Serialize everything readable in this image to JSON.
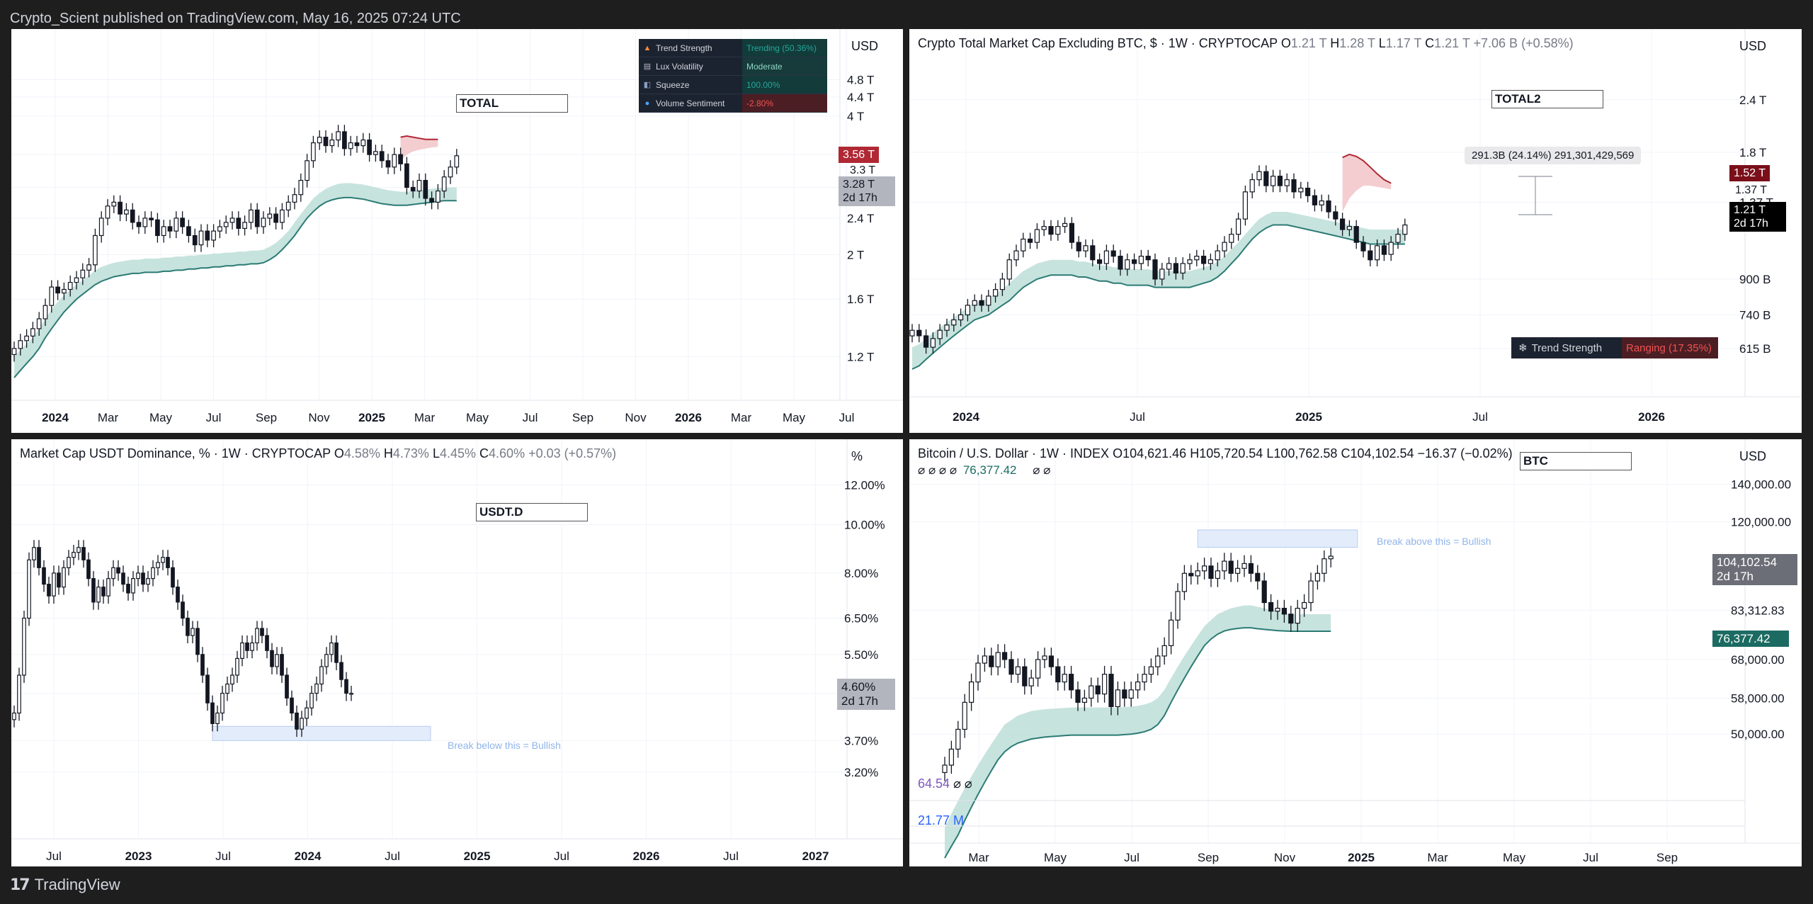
{
  "header": {
    "published": "Crypto_Scient published on TradingView.com, May 16, 2025 07:24 UTC"
  },
  "footer": {
    "brand": "TradingView",
    "logo": "tradingview-logo"
  },
  "colors": {
    "bull_fill": "#ffffff",
    "bear_fill": "#131722",
    "band": "#b9dcd6",
    "band_line": "#2b7a74",
    "red_cloud": "#f2c4c8",
    "red_line": "#b02834",
    "zone": "#e3ecfb"
  },
  "panels": {
    "p1": {
      "label": "TOTAL",
      "currency": "USD",
      "table": [
        {
          "icon": "fire-icon",
          "key": "Trend Strength",
          "value": "Trending (50.36%)"
        },
        {
          "icon": "chart-icon",
          "key": "Lux Volatility",
          "value": "Moderate"
        },
        {
          "icon": "compress-icon",
          "key": "Squeeze",
          "value": "100.00%"
        },
        {
          "icon": "drop-icon",
          "key": "Volume Sentiment",
          "value": "-2.80%"
        }
      ],
      "tags": {
        "red": "3.56 T",
        "plain": "3.3 T",
        "price": "3.28 T",
        "countdown": "2d 17h"
      }
    },
    "p2": {
      "title_main": "Crypto Total Market Cap Excluding BTC, $ · 1W · CRYPTOCAP",
      "o_label": "O",
      "o": "1.21 T",
      "h_label": "H",
      "h": "1.28 T",
      "l_label": "L",
      "l": "1.17 T",
      "c_label": "C",
      "c": "1.21 T",
      "chg": "+7.06 B (+0.58%)",
      "label": "TOTAL2",
      "currency": "USD",
      "measure": "291.3B (24.14%) 291,301,429,569",
      "tags": {
        "red": "1.52 T",
        "plain": "1.37 T",
        "price": "1.21 T",
        "countdown": "2d 17h"
      },
      "trend_key": "Trend Strength",
      "trend_val": "Ranging (17.35%)"
    },
    "p3": {
      "title_main": "Market Cap USDT Dominance, % · 1W · CRYPTOCAP",
      "o_label": "O",
      "o": "4.58%",
      "h_label": "H",
      "h": "4.73%",
      "l_label": "L",
      "l": "4.45%",
      "c_label": "C",
      "c": "4.60%",
      "chg": "+0.03 (+0.57%)",
      "label": "USDT.D",
      "currency": "%",
      "zone_text": "Break below this = Bullish",
      "tags": {
        "price": "4.60%",
        "countdown": "2d 17h"
      }
    },
    "p4": {
      "title_main": "Bitcoin / U.S. Dollar · 1W · INDEX",
      "o_label": "O",
      "o": "104,621.46",
      "h_label": "H",
      "h": "105,720.54",
      "l_label": "L",
      "l": "100,762.58",
      "c_label": "C",
      "c": "104,102.54",
      "chg": "−16.37 (−0.02%)",
      "sub_symbols": "⌀ ⌀ ⌀ ⌀",
      "sub_value": "76,377.42",
      "sub_symbols2": "⌀ ⌀",
      "label": "BTC",
      "currency": "USD",
      "zone_text": "Break above this = Bullish",
      "tags": {
        "price": "104,102.54",
        "countdown": "2d 17h",
        "band": "76,377.42"
      },
      "ind1": "64.54",
      "ind1_sym": "⌀ ⌀",
      "ind2": "21.77 M"
    }
  },
  "chart_data": [
    {
      "type": "candlestick",
      "name": "TOTAL",
      "y_axis": [
        "4.8 T",
        "4.4 T",
        "4 T",
        "3.3 T",
        "2.8 T",
        "2.4 T",
        "2 T",
        "1.6 T",
        "1.2 T"
      ],
      "y_scale": "log",
      "x_axis": [
        "2024",
        "Mar",
        "May",
        "Jul",
        "Sep",
        "Nov",
        "2025",
        "Mar",
        "May",
        "Jul",
        "Sep",
        "Nov",
        "2026",
        "Mar",
        "May",
        "Jul"
      ],
      "closes": [
        1.25,
        1.3,
        1.33,
        1.38,
        1.45,
        1.55,
        1.7,
        1.65,
        1.68,
        1.74,
        1.78,
        1.85,
        1.9,
        2.2,
        2.4,
        2.55,
        2.6,
        2.45,
        2.5,
        2.35,
        2.3,
        2.4,
        2.38,
        2.2,
        2.3,
        2.25,
        2.4,
        2.3,
        2.2,
        2.1,
        2.25,
        2.15,
        2.25,
        2.3,
        2.35,
        2.4,
        2.28,
        2.35,
        2.5,
        2.3,
        2.4,
        2.45,
        2.35,
        2.5,
        2.6,
        2.7,
        2.9,
        3.2,
        3.5,
        3.6,
        3.45,
        3.55,
        3.7,
        3.4,
        3.5,
        3.45,
        3.55,
        3.3,
        3.35,
        3.2,
        3.1,
        3.3,
        3.15,
        2.8,
        2.75,
        2.9,
        2.65,
        2.6,
        2.75,
        2.95,
        3.1,
        3.28
      ],
      "band_upper": [
        1.2,
        1.24,
        1.28,
        1.32,
        1.38,
        1.45,
        1.52,
        1.58,
        1.63,
        1.68,
        1.72,
        1.76,
        1.8,
        1.85,
        1.88,
        1.9,
        1.92,
        1.93,
        1.94,
        1.95,
        1.95,
        1.96,
        1.96,
        1.96,
        1.97,
        1.97,
        1.98,
        1.98,
        1.99,
        1.99,
        2.0,
        2.0,
        2.01,
        2.01,
        2.02,
        2.02,
        2.03,
        2.03,
        2.04,
        2.04,
        2.05,
        2.08,
        2.12,
        2.18,
        2.25,
        2.35,
        2.45,
        2.55,
        2.65,
        2.72,
        2.78,
        2.82,
        2.85,
        2.86,
        2.86,
        2.85,
        2.84,
        2.82,
        2.8,
        2.78,
        2.76,
        2.75,
        2.74,
        2.74,
        2.75,
        2.76,
        2.77,
        2.78,
        2.79,
        2.8,
        2.8,
        2.8
      ],
      "band_lower": [
        1.08,
        1.12,
        1.16,
        1.2,
        1.25,
        1.32,
        1.38,
        1.44,
        1.5,
        1.55,
        1.6,
        1.64,
        1.68,
        1.72,
        1.75,
        1.77,
        1.79,
        1.8,
        1.81,
        1.82,
        1.82,
        1.83,
        1.83,
        1.83,
        1.84,
        1.84,
        1.85,
        1.85,
        1.86,
        1.86,
        1.87,
        1.87,
        1.88,
        1.88,
        1.89,
        1.89,
        1.9,
        1.9,
        1.91,
        1.91,
        1.92,
        1.95,
        1.99,
        2.05,
        2.12,
        2.2,
        2.3,
        2.4,
        2.48,
        2.55,
        2.6,
        2.63,
        2.65,
        2.66,
        2.66,
        2.65,
        2.64,
        2.62,
        2.6,
        2.58,
        2.57,
        2.56,
        2.56,
        2.56,
        2.57,
        2.58,
        2.59,
        2.6,
        2.61,
        2.62,
        2.62,
        2.62
      ],
      "red_cloud": {
        "start_index": 62,
        "upper": [
          3.6,
          3.62,
          3.6,
          3.58,
          3.56,
          3.56,
          3.56
        ],
        "lower": [
          3.2,
          3.3,
          3.35,
          3.38,
          3.4,
          3.42,
          3.43
        ]
      }
    },
    {
      "type": "candlestick",
      "name": "TOTAL2",
      "y_axis": [
        "2.4 T",
        "1.8 T",
        "1.37 T",
        "900 B",
        "740 B",
        "615 B"
      ],
      "y_scale": "log",
      "x_axis": [
        "2024",
        "Jul",
        "2025",
        "Jul",
        "2026"
      ],
      "closes": [
        0.68,
        0.66,
        0.62,
        0.65,
        0.68,
        0.7,
        0.72,
        0.74,
        0.78,
        0.8,
        0.78,
        0.82,
        0.85,
        0.9,
        1.0,
        1.05,
        1.12,
        1.1,
        1.18,
        1.2,
        1.15,
        1.2,
        1.22,
        1.1,
        1.05,
        1.08,
        1.0,
        0.98,
        1.05,
        1.02,
        0.95,
        1.0,
        0.98,
        1.02,
        1.0,
        0.9,
        0.95,
        0.98,
        0.93,
        0.98,
        1.0,
        1.02,
        0.98,
        1.0,
        1.05,
        1.1,
        1.15,
        1.25,
        1.45,
        1.55,
        1.62,
        1.5,
        1.58,
        1.5,
        1.55,
        1.45,
        1.48,
        1.42,
        1.35,
        1.38,
        1.3,
        1.25,
        1.18,
        1.2,
        1.1,
        1.05,
        1.0,
        1.08,
        1.03,
        1.1,
        1.15,
        1.21
      ],
      "band_upper": [
        0.62,
        0.63,
        0.65,
        0.67,
        0.69,
        0.71,
        0.73,
        0.75,
        0.77,
        0.79,
        0.8,
        0.81,
        0.83,
        0.85,
        0.88,
        0.91,
        0.94,
        0.96,
        0.98,
        0.99,
        1.0,
        1.0,
        1.0,
        1.0,
        0.99,
        0.99,
        0.98,
        0.97,
        0.97,
        0.96,
        0.96,
        0.95,
        0.95,
        0.95,
        0.95,
        0.94,
        0.94,
        0.94,
        0.94,
        0.94,
        0.94,
        0.95,
        0.96,
        0.97,
        0.99,
        1.02,
        1.06,
        1.1,
        1.15,
        1.2,
        1.25,
        1.28,
        1.3,
        1.3,
        1.3,
        1.29,
        1.28,
        1.27,
        1.26,
        1.25,
        1.24,
        1.23,
        1.22,
        1.21,
        1.2,
        1.19,
        1.18,
        1.18,
        1.18,
        1.18,
        1.18,
        1.18
      ],
      "band_lower": [
        0.55,
        0.56,
        0.58,
        0.6,
        0.62,
        0.64,
        0.66,
        0.68,
        0.7,
        0.72,
        0.73,
        0.74,
        0.76,
        0.78,
        0.8,
        0.83,
        0.86,
        0.88,
        0.9,
        0.91,
        0.92,
        0.92,
        0.92,
        0.92,
        0.91,
        0.91,
        0.9,
        0.89,
        0.89,
        0.88,
        0.88,
        0.87,
        0.87,
        0.87,
        0.87,
        0.86,
        0.86,
        0.86,
        0.86,
        0.86,
        0.86,
        0.87,
        0.88,
        0.89,
        0.91,
        0.94,
        0.98,
        1.02,
        1.07,
        1.12,
        1.16,
        1.19,
        1.21,
        1.21,
        1.21,
        1.2,
        1.19,
        1.18,
        1.17,
        1.16,
        1.15,
        1.14,
        1.13,
        1.12,
        1.11,
        1.1,
        1.09,
        1.09,
        1.09,
        1.09,
        1.09,
        1.09
      ],
      "red_cloud": {
        "start_index": 62,
        "upper": [
          1.75,
          1.78,
          1.76,
          1.72,
          1.66,
          1.6,
          1.55,
          1.52
        ],
        "lower": [
          1.3,
          1.4,
          1.46,
          1.5,
          1.5,
          1.49,
          1.48,
          1.47
        ]
      }
    },
    {
      "type": "candlestick",
      "name": "USDT.D",
      "y_axis": [
        "12.00%",
        "10.00%",
        "8.00%",
        "6.50%",
        "5.50%",
        "4.60%",
        "3.70%",
        "3.20%"
      ],
      "y_scale": "log",
      "x_axis": [
        "Jul",
        "2023",
        "Jul",
        "2024",
        "Jul",
        "2025",
        "Jul",
        "2026",
        "Jul",
        "2027"
      ],
      "closes": [
        4.2,
        5.0,
        6.5,
        8.5,
        9.0,
        8.2,
        7.6,
        7.2,
        8.0,
        7.5,
        8.2,
        8.6,
        8.8,
        9.0,
        8.5,
        7.8,
        7.0,
        7.5,
        7.2,
        7.8,
        8.2,
        8.0,
        7.6,
        7.3,
        7.8,
        8.0,
        7.6,
        7.8,
        8.2,
        8.4,
        8.6,
        8.2,
        7.5,
        7.0,
        6.5,
        6.0,
        6.2,
        5.5,
        5.0,
        4.4,
        4.0,
        4.2,
        4.6,
        4.8,
        5.0,
        5.4,
        5.8,
        5.6,
        5.8,
        6.2,
        6.0,
        5.6,
        5.2,
        5.5,
        5.0,
        4.5,
        4.2,
        3.9,
        4.1,
        4.3,
        4.6,
        4.8,
        5.2,
        5.5,
        5.8,
        5.3,
        4.9,
        4.6,
        4.6
      ],
      "zone": {
        "start_index": 40,
        "end_index": 84,
        "upper": 3.95,
        "lower": 3.7
      }
    },
    {
      "type": "candlestick",
      "name": "BTC",
      "y_axis": [
        "140,000.00",
        "120,000.00",
        "83,312.83",
        "68,000.00",
        "58,000.00",
        "50,000.00"
      ],
      "y_scale": "log",
      "x_axis": [
        "Mar",
        "May",
        "Jul",
        "Sep",
        "Nov",
        "2025",
        "Mar",
        "May",
        "Jul",
        "Sep"
      ],
      "closes": [
        44000,
        47000,
        51000,
        57000,
        62000,
        67000,
        69000,
        66000,
        70000,
        68000,
        64000,
        66000,
        61000,
        63000,
        68000,
        69000,
        66000,
        62000,
        64000,
        60000,
        57000,
        58000,
        61000,
        59000,
        64000,
        56000,
        60000,
        58000,
        60000,
        62000,
        64000,
        66000,
        69000,
        72000,
        80000,
        90000,
        97000,
        96000,
        98000,
        100000,
        95000,
        98000,
        102000,
        97000,
        99000,
        101000,
        97000,
        94000,
        86000,
        83000,
        84000,
        82000,
        79000,
        84000,
        86000,
        94000,
        97000,
        103000,
        104102
      ],
      "band_upper": [
        34000,
        36000,
        38000,
        40000,
        42000,
        44000,
        46000,
        48000,
        50000,
        52000,
        53000,
        54000,
        54500,
        55000,
        55200,
        55400,
        55500,
        55600,
        55700,
        55800,
        55800,
        55800,
        55800,
        55800,
        55800,
        55800,
        55800,
        55900,
        56000,
        56200,
        56500,
        57000,
        58000,
        60000,
        63000,
        66000,
        69000,
        72000,
        75000,
        78000,
        80000,
        82000,
        83000,
        84000,
        84500,
        85000,
        85000,
        84500,
        84000,
        83500,
        83000,
        82500,
        82000,
        82000,
        82000,
        82000,
        82000,
        82000,
        82000
      ],
      "band_lower": [
        30000,
        31500,
        33000,
        35000,
        37000,
        39000,
        41000,
        43000,
        45000,
        46500,
        47500,
        48200,
        48600,
        49000,
        49200,
        49400,
        49500,
        49600,
        49700,
        49800,
        49800,
        49800,
        49800,
        49800,
        49800,
        49800,
        49800,
        49900,
        50000,
        50200,
        50500,
        51000,
        52000,
        54000,
        57000,
        60000,
        63000,
        66000,
        69000,
        72000,
        74000,
        75500,
        76500,
        77000,
        77300,
        77500,
        77500,
        77200,
        77000,
        76800,
        76600,
        76500,
        76400,
        76400,
        76400,
        76400,
        76400,
        76400,
        76400
      ],
      "zone": {
        "start_index": 38,
        "end_index": 62,
        "upper": 116000,
        "lower": 108000
      }
    }
  ]
}
